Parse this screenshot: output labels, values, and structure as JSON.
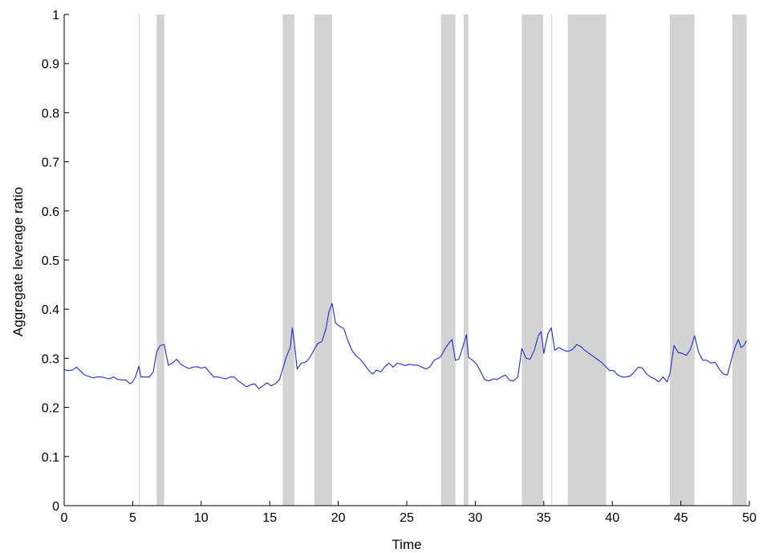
{
  "chart_data": {
    "type": "line",
    "xlabel": "Time",
    "ylabel": "Aggregate leverage ratio",
    "xlim": [
      0,
      50
    ],
    "ylim": [
      0,
      1
    ],
    "x_ticks": [
      "0",
      "5",
      "10",
      "15",
      "20",
      "25",
      "30",
      "35",
      "40",
      "45",
      "50"
    ],
    "y_ticks": [
      "0",
      "0.1",
      "0.2",
      "0.3",
      "0.4",
      "0.5",
      "0.6",
      "0.7",
      "0.8",
      "0.9",
      "1"
    ],
    "grid": false,
    "shaded_intervals": [
      [
        5.45,
        5.5
      ],
      [
        6.75,
        7.3
      ],
      [
        15.95,
        16.8
      ],
      [
        18.25,
        19.55
      ],
      [
        27.5,
        28.55
      ],
      [
        29.15,
        29.5
      ],
      [
        33.4,
        34.95
      ],
      [
        35.55,
        35.6
      ],
      [
        36.75,
        39.55
      ],
      [
        44.2,
        46.0
      ],
      [
        48.75,
        49.8
      ]
    ],
    "colors": {
      "line": "#1f2fd0",
      "shading": "#d3d3d3"
    },
    "series": [
      {
        "values": [
          [
            0.0,
            0.277
          ],
          [
            0.3,
            0.275
          ],
          [
            0.6,
            0.276
          ],
          [
            0.9,
            0.282
          ],
          [
            1.2,
            0.274
          ],
          [
            1.5,
            0.266
          ],
          [
            1.8,
            0.263
          ],
          [
            2.1,
            0.26
          ],
          [
            2.4,
            0.262
          ],
          [
            2.7,
            0.262
          ],
          [
            3.0,
            0.26
          ],
          [
            3.3,
            0.258
          ],
          [
            3.6,
            0.262
          ],
          [
            3.9,
            0.257
          ],
          [
            4.2,
            0.256
          ],
          [
            4.5,
            0.256
          ],
          [
            4.8,
            0.248
          ],
          [
            5.0,
            0.252
          ],
          [
            5.2,
            0.262
          ],
          [
            5.45,
            0.284
          ],
          [
            5.6,
            0.262
          ],
          [
            5.9,
            0.262
          ],
          [
            6.2,
            0.262
          ],
          [
            6.5,
            0.272
          ],
          [
            6.75,
            0.313
          ],
          [
            7.0,
            0.326
          ],
          [
            7.3,
            0.328
          ],
          [
            7.6,
            0.286
          ],
          [
            7.9,
            0.29
          ],
          [
            8.2,
            0.298
          ],
          [
            8.5,
            0.288
          ],
          [
            8.8,
            0.283
          ],
          [
            9.1,
            0.279
          ],
          [
            9.4,
            0.282
          ],
          [
            9.7,
            0.283
          ],
          [
            10.0,
            0.28
          ],
          [
            10.3,
            0.282
          ],
          [
            10.6,
            0.272
          ],
          [
            10.9,
            0.262
          ],
          [
            11.2,
            0.262
          ],
          [
            11.5,
            0.26
          ],
          [
            11.8,
            0.258
          ],
          [
            12.1,
            0.262
          ],
          [
            12.4,
            0.262
          ],
          [
            12.7,
            0.254
          ],
          [
            13.0,
            0.248
          ],
          [
            13.3,
            0.242
          ],
          [
            13.6,
            0.246
          ],
          [
            13.9,
            0.248
          ],
          [
            14.2,
            0.238
          ],
          [
            14.5,
            0.244
          ],
          [
            14.8,
            0.25
          ],
          [
            15.1,
            0.244
          ],
          [
            15.4,
            0.248
          ],
          [
            15.7,
            0.256
          ],
          [
            15.95,
            0.278
          ],
          [
            16.2,
            0.302
          ],
          [
            16.5,
            0.322
          ],
          [
            16.65,
            0.362
          ],
          [
            16.8,
            0.33
          ],
          [
            17.0,
            0.278
          ],
          [
            17.3,
            0.29
          ],
          [
            17.6,
            0.292
          ],
          [
            17.9,
            0.3
          ],
          [
            18.25,
            0.318
          ],
          [
            18.5,
            0.33
          ],
          [
            18.8,
            0.334
          ],
          [
            19.1,
            0.36
          ],
          [
            19.3,
            0.392
          ],
          [
            19.55,
            0.412
          ],
          [
            19.8,
            0.372
          ],
          [
            20.1,
            0.365
          ],
          [
            20.4,
            0.361
          ],
          [
            20.7,
            0.336
          ],
          [
            21.0,
            0.316
          ],
          [
            21.3,
            0.305
          ],
          [
            21.6,
            0.298
          ],
          [
            21.9,
            0.288
          ],
          [
            22.2,
            0.276
          ],
          [
            22.5,
            0.268
          ],
          [
            22.8,
            0.276
          ],
          [
            23.1,
            0.272
          ],
          [
            23.4,
            0.283
          ],
          [
            23.7,
            0.29
          ],
          [
            24.0,
            0.282
          ],
          [
            24.3,
            0.29
          ],
          [
            24.6,
            0.288
          ],
          [
            24.9,
            0.285
          ],
          [
            25.2,
            0.288
          ],
          [
            25.5,
            0.286
          ],
          [
            25.8,
            0.286
          ],
          [
            26.1,
            0.282
          ],
          [
            26.4,
            0.278
          ],
          [
            26.7,
            0.283
          ],
          [
            27.0,
            0.296
          ],
          [
            27.3,
            0.3
          ],
          [
            27.5,
            0.304
          ],
          [
            27.8,
            0.32
          ],
          [
            28.1,
            0.332
          ],
          [
            28.3,
            0.338
          ],
          [
            28.55,
            0.296
          ],
          [
            28.8,
            0.298
          ],
          [
            29.1,
            0.324
          ],
          [
            29.35,
            0.348
          ],
          [
            29.5,
            0.302
          ],
          [
            29.8,
            0.296
          ],
          [
            30.1,
            0.288
          ],
          [
            30.4,
            0.272
          ],
          [
            30.7,
            0.256
          ],
          [
            31.0,
            0.254
          ],
          [
            31.3,
            0.258
          ],
          [
            31.6,
            0.257
          ],
          [
            31.9,
            0.262
          ],
          [
            32.2,
            0.266
          ],
          [
            32.5,
            0.255
          ],
          [
            32.8,
            0.254
          ],
          [
            33.1,
            0.262
          ],
          [
            33.4,
            0.32
          ],
          [
            33.7,
            0.3
          ],
          [
            34.0,
            0.298
          ],
          [
            34.3,
            0.316
          ],
          [
            34.6,
            0.346
          ],
          [
            34.8,
            0.354
          ],
          [
            35.0,
            0.31
          ],
          [
            35.3,
            0.35
          ],
          [
            35.55,
            0.362
          ],
          [
            35.8,
            0.316
          ],
          [
            36.1,
            0.322
          ],
          [
            36.4,
            0.317
          ],
          [
            36.75,
            0.314
          ],
          [
            37.1,
            0.318
          ],
          [
            37.4,
            0.328
          ],
          [
            37.7,
            0.324
          ],
          [
            38.0,
            0.316
          ],
          [
            38.3,
            0.31
          ],
          [
            38.6,
            0.304
          ],
          [
            38.9,
            0.298
          ],
          [
            39.2,
            0.292
          ],
          [
            39.55,
            0.282
          ],
          [
            39.8,
            0.275
          ],
          [
            40.1,
            0.275
          ],
          [
            40.4,
            0.266
          ],
          [
            40.7,
            0.262
          ],
          [
            41.0,
            0.262
          ],
          [
            41.3,
            0.264
          ],
          [
            41.6,
            0.272
          ],
          [
            41.9,
            0.282
          ],
          [
            42.2,
            0.28
          ],
          [
            42.5,
            0.268
          ],
          [
            42.8,
            0.262
          ],
          [
            43.1,
            0.258
          ],
          [
            43.4,
            0.252
          ],
          [
            43.7,
            0.262
          ],
          [
            44.0,
            0.252
          ],
          [
            44.2,
            0.268
          ],
          [
            44.5,
            0.326
          ],
          [
            44.8,
            0.312
          ],
          [
            45.1,
            0.31
          ],
          [
            45.4,
            0.306
          ],
          [
            45.7,
            0.318
          ],
          [
            46.0,
            0.346
          ],
          [
            46.3,
            0.312
          ],
          [
            46.6,
            0.296
          ],
          [
            46.9,
            0.296
          ],
          [
            47.2,
            0.29
          ],
          [
            47.5,
            0.292
          ],
          [
            47.8,
            0.278
          ],
          [
            48.1,
            0.268
          ],
          [
            48.4,
            0.266
          ],
          [
            48.75,
            0.304
          ],
          [
            49.0,
            0.326
          ],
          [
            49.2,
            0.338
          ],
          [
            49.4,
            0.322
          ],
          [
            49.6,
            0.326
          ],
          [
            49.8,
            0.336
          ]
        ]
      }
    ]
  }
}
